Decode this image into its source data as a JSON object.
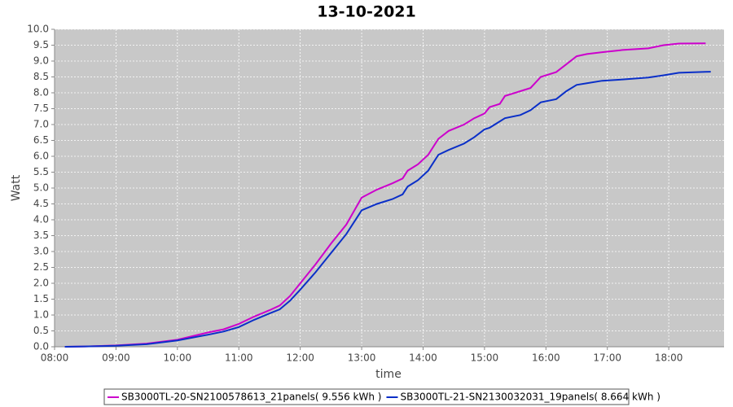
{
  "chart_data": {
    "type": "line",
    "title": "13-10-2021",
    "x_label": "time",
    "y_label": "Watt",
    "x": [
      "08:10",
      "08:30",
      "09:00",
      "09:30",
      "10:00",
      "10:30",
      "10:45",
      "11:00",
      "11:15",
      "11:30",
      "11:40",
      "11:50",
      "12:00",
      "12:15",
      "12:30",
      "12:45",
      "13:00",
      "13:15",
      "13:30",
      "13:40",
      "13:45",
      "13:55",
      "14:05",
      "14:15",
      "14:25",
      "14:40",
      "14:50",
      "15:00",
      "15:05",
      "15:15",
      "15:20",
      "15:35",
      "15:45",
      "15:55",
      "16:10",
      "16:20",
      "16:30",
      "16:40",
      "16:55",
      "17:15",
      "17:40",
      "17:55",
      "18:10",
      "18:36",
      "18:41"
    ],
    "series": [
      {
        "name": "SB3000TL-20-SN2100578613_21panels( 9.556 kWh )",
        "color": "#cc00cc",
        "values": [
          0.0,
          0.01,
          0.04,
          0.1,
          0.22,
          0.45,
          0.55,
          0.72,
          0.95,
          1.15,
          1.3,
          1.6,
          2.0,
          2.6,
          3.25,
          3.85,
          4.7,
          4.95,
          5.15,
          5.3,
          5.55,
          5.75,
          6.05,
          6.55,
          6.8,
          7.0,
          7.2,
          7.35,
          7.55,
          7.65,
          7.9,
          8.05,
          8.15,
          8.5,
          8.65,
          8.9,
          9.15,
          9.22,
          9.28,
          9.35,
          9.4,
          9.5,
          9.55,
          9.556,
          null
        ]
      },
      {
        "name": "SB3000TL-21-SN2130032031_19panels( 8.664 kWh )",
        "color": "#0a2fc8",
        "values": [
          0.0,
          0.01,
          0.03,
          0.08,
          0.2,
          0.38,
          0.48,
          0.62,
          0.85,
          1.05,
          1.18,
          1.45,
          1.8,
          2.35,
          2.95,
          3.55,
          4.3,
          4.5,
          4.65,
          4.8,
          5.05,
          5.25,
          5.55,
          6.05,
          6.2,
          6.4,
          6.6,
          6.85,
          6.9,
          7.1,
          7.2,
          7.3,
          7.45,
          7.7,
          7.8,
          8.05,
          8.25,
          8.3,
          8.38,
          8.42,
          8.48,
          8.55,
          8.63,
          8.66,
          8.664
        ]
      }
    ],
    "xlim": [
      "08:00",
      "18:54"
    ],
    "xticks": [
      "08:00",
      "09:00",
      "10:00",
      "11:00",
      "12:00",
      "13:00",
      "14:00",
      "15:00",
      "16:00",
      "17:00",
      "18:00"
    ],
    "ylim": [
      0,
      10
    ],
    "yticks": [
      {
        "value": 0,
        "label": "0.0"
      },
      {
        "value": 0.5,
        "label": "0.5"
      },
      {
        "value": 1,
        "label": "1.0"
      },
      {
        "value": 1.5,
        "label": "1.5"
      },
      {
        "value": 2,
        "label": "2.0"
      },
      {
        "value": 2.5,
        "label": "2.5"
      },
      {
        "value": 3,
        "label": "3.0"
      },
      {
        "value": 3.5,
        "label": "3.5"
      },
      {
        "value": 4,
        "label": "4.0"
      },
      {
        "value": 4.5,
        "label": "4.5"
      },
      {
        "value": 5,
        "label": "5.0"
      },
      {
        "value": 5.5,
        "label": "5.5"
      },
      {
        "value": 6,
        "label": "6.0"
      },
      {
        "value": 6.5,
        "label": "6.5"
      },
      {
        "value": 7,
        "label": "7.0"
      },
      {
        "value": 7.5,
        "label": "7.5"
      },
      {
        "value": 8,
        "label": "8.0"
      },
      {
        "value": 8.5,
        "label": "8.5"
      },
      {
        "value": 9,
        "label": "9.0"
      },
      {
        "value": 9.5,
        "label": "9.5"
      },
      {
        "value": 10,
        "label": "10.0"
      }
    ],
    "grid": true,
    "legend": "bottom"
  }
}
